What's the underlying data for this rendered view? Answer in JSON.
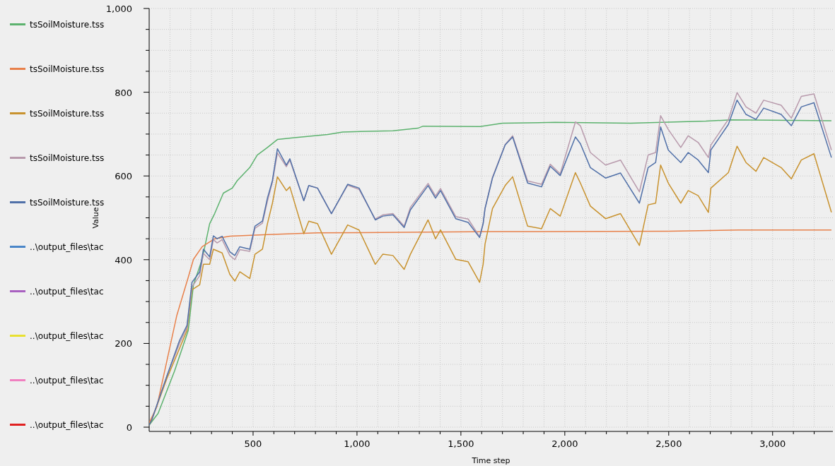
{
  "chart_data": {
    "type": "line",
    "xlabel": "Time step",
    "ylabel": "Value",
    "xlim": [
      0,
      3290
    ],
    "ylim": [
      0,
      1000
    ],
    "xticks": [
      {
        "value": 100,
        "label": null
      },
      {
        "value": 200,
        "label": null
      },
      {
        "value": 300,
        "label": null
      },
      {
        "value": 400,
        "label": null
      },
      500,
      {
        "value": 600,
        "label": null
      },
      {
        "value": 700,
        "label": null
      },
      {
        "value": 800,
        "label": null
      },
      {
        "value": 900,
        "label": null
      },
      {
        "value": 1000,
        "label": "1,000"
      },
      {
        "value": 1100,
        "label": null
      },
      {
        "value": 1200,
        "label": null
      },
      {
        "value": 1300,
        "label": null
      },
      {
        "value": 1400,
        "label": null
      },
      {
        "value": 1500,
        "label": "1,500"
      },
      {
        "value": 1600,
        "label": null
      },
      {
        "value": 1700,
        "label": null
      },
      {
        "value": 1800,
        "label": null
      },
      {
        "value": 1900,
        "label": null
      },
      {
        "value": 2000,
        "label": "2,000"
      },
      {
        "value": 2100,
        "label": null
      },
      {
        "value": 2200,
        "label": null
      },
      {
        "value": 2300,
        "label": null
      },
      {
        "value": 2400,
        "label": null
      },
      {
        "value": 2500,
        "label": "2,500"
      },
      {
        "value": 2600,
        "label": null
      },
      {
        "value": 2700,
        "label": null
      },
      {
        "value": 2800,
        "label": null
      },
      {
        "value": 2900,
        "label": null
      },
      {
        "value": 3000,
        "label": "3,000"
      },
      {
        "value": 3100,
        "label": null
      },
      {
        "value": 3200,
        "label": null
      }
    ],
    "yticks": [
      0,
      {
        "value": 50,
        "label": null
      },
      {
        "value": 100,
        "label": null
      },
      {
        "value": 150,
        "label": null
      },
      200,
      {
        "value": 250,
        "label": null
      },
      {
        "value": 300,
        "label": null
      },
      {
        "value": 350,
        "label": null
      },
      400,
      {
        "value": 450,
        "label": null
      },
      {
        "value": 500,
        "label": null
      },
      {
        "value": 550,
        "label": null
      },
      600,
      {
        "value": 650,
        "label": null
      },
      {
        "value": 700,
        "label": null
      },
      {
        "value": 750,
        "label": null
      },
      800,
      {
        "value": 850,
        "label": null
      },
      {
        "value": 900,
        "label": null
      },
      {
        "value": 950,
        "label": null
      },
      {
        "value": 1000,
        "label": "1,000"
      }
    ],
    "grid": true,
    "legend": "left",
    "marker": "none",
    "line_style": "solid",
    "series": [
      {
        "name": "tsSoilMoisture.tss",
        "color": "#5cb26e",
        "x": [
          0,
          43,
          122,
          188,
          213,
          255,
          291,
          315,
          357,
          400,
          424,
          484,
          520,
          569,
          617,
          690,
          859,
          931,
          1173,
          1293,
          1318,
          1592,
          1700,
          1954,
          2316,
          2679,
          2800,
          3283
        ],
        "values": [
          5,
          33,
          134,
          231,
          340,
          401,
          486,
          510,
          559,
          571,
          589,
          620,
          650,
          668,
          687,
          691,
          699,
          705,
          708,
          714,
          719,
          718,
          726,
          728,
          726,
          731,
          734,
          732
        ]
      },
      {
        "name": "tsSoilMoisture.tss",
        "color": "#e8804a",
        "x": [
          0,
          37,
          85,
          133,
          188,
          213,
          255,
          315,
          388,
          569,
          810,
          1656,
          2498,
          2836,
          3283
        ],
        "values": [
          10,
          49,
          158,
          267,
          358,
          401,
          431,
          450,
          456,
          460,
          464,
          467,
          468,
          471,
          471
        ]
      },
      {
        "name": "tsSoilMoisture.tss",
        "color": "#c8922e",
        "x": [
          0,
          13,
          85,
          146,
          182,
          206,
          243,
          261,
          291,
          309,
          351,
          388,
          412,
          436,
          484,
          509,
          545,
          569,
          593,
          617,
          660,
          677,
          744,
          768,
          810,
          877,
          955,
          1010,
          1088,
          1124,
          1173,
          1227,
          1257,
          1342,
          1378,
          1402,
          1475,
          1535,
          1590,
          1607,
          1616,
          1652,
          1713,
          1749,
          1821,
          1888,
          1930,
          1978,
          2051,
          2075,
          2123,
          2196,
          2268,
          2359,
          2401,
          2437,
          2461,
          2498,
          2558,
          2594,
          2642,
          2691,
          2703,
          2787,
          2829,
          2872,
          2920,
          2957,
          3041,
          3090,
          3138,
          3199,
          3283
        ],
        "values": [
          5,
          18,
          116,
          188,
          231,
          328,
          340,
          389,
          389,
          425,
          416,
          365,
          349,
          371,
          355,
          413,
          425,
          486,
          535,
          598,
          565,
          574,
          462,
          492,
          486,
          413,
          483,
          471,
          389,
          413,
          410,
          377,
          413,
          495,
          450,
          471,
          401,
          395,
          346,
          389,
          437,
          522,
          577,
          598,
          480,
          474,
          522,
          504,
          608,
          583,
          528,
          498,
          510,
          434,
          531,
          535,
          626,
          583,
          535,
          565,
          553,
          513,
          571,
          608,
          671,
          632,
          611,
          644,
          620,
          593,
          638,
          653,
          513
        ]
      },
      {
        "name": "tsSoilMoisture.tss",
        "color": "#b89aac",
        "x": [
          13,
          85,
          146,
          182,
          206,
          243,
          261,
          291,
          309,
          327,
          351,
          388,
          412,
          436,
          484,
          509,
          545,
          569,
          593,
          617,
          660,
          677,
          744,
          768,
          810,
          877,
          955,
          1010,
          1088,
          1124,
          1173,
          1227,
          1257,
          1342,
          1378,
          1402,
          1475,
          1535,
          1590,
          1607,
          1616,
          1652,
          1713,
          1749,
          1821,
          1888,
          1930,
          1978,
          2051,
          2075,
          2123,
          2196,
          2268,
          2359,
          2401,
          2437,
          2461,
          2498,
          2558,
          2594,
          2642,
          2691,
          2703,
          2787,
          2829,
          2872,
          2920,
          2957,
          3041,
          3090,
          3138,
          3199,
          3283
        ],
        "values": [
          18,
          122,
          200,
          238,
          335,
          362,
          415,
          400,
          448,
          440,
          448,
          410,
          400,
          424,
          420,
          475,
          487,
          540,
          585,
          655,
          622,
          638,
          541,
          577,
          571,
          510,
          578,
          568,
          497,
          507,
          510,
          480,
          525,
          582,
          552,
          570,
          503,
          497,
          455,
          486,
          522,
          597,
          675,
          696,
          588,
          580,
          628,
          605,
          729,
          720,
          656,
          626,
          638,
          562,
          650,
          656,
          744,
          711,
          668,
          696,
          680,
          644,
          674,
          735,
          799,
          765,
          750,
          781,
          769,
          738,
          790,
          796,
          662
        ]
      },
      {
        "name": "tsSoilMoisture.tss",
        "color": "#5070a8",
        "x": [
          0,
          13,
          85,
          146,
          182,
          206,
          243,
          261,
          291,
          309,
          327,
          351,
          388,
          412,
          436,
          484,
          509,
          545,
          569,
          593,
          617,
          660,
          677,
          744,
          768,
          810,
          877,
          955,
          1010,
          1088,
          1124,
          1173,
          1227,
          1257,
          1342,
          1378,
          1402,
          1475,
          1535,
          1590,
          1607,
          1616,
          1652,
          1713,
          1749,
          1821,
          1888,
          1930,
          1978,
          2051,
          2075,
          2123,
          2196,
          2268,
          2359,
          2401,
          2437,
          2461,
          2498,
          2558,
          2594,
          2642,
          2691,
          2703,
          2787,
          2829,
          2872,
          2920,
          2957,
          3041,
          3090,
          3138,
          3199,
          3283
        ],
        "values": [
          5,
          18,
          122,
          207,
          243,
          346,
          371,
          425,
          407,
          457,
          450,
          456,
          419,
          410,
          431,
          425,
          480,
          492,
          547,
          589,
          665,
          626,
          641,
          541,
          577,
          571,
          510,
          580,
          571,
          495,
          504,
          507,
          477,
          519,
          577,
          547,
          565,
          498,
          489,
          453,
          486,
          522,
          595,
          674,
          693,
          583,
          574,
          623,
          601,
          693,
          677,
          620,
          595,
          607,
          535,
          620,
          632,
          717,
          662,
          632,
          656,
          638,
          608,
          662,
          723,
          781,
          747,
          735,
          762,
          747,
          720,
          765,
          775,
          644
        ]
      },
      {
        "name": "..\\output_files\\tac",
        "color": "#4a86c8"
      },
      {
        "name": "..\\output_files\\tac",
        "color": "#a860c0"
      },
      {
        "name": "..\\output_files\\tac",
        "color": "#e8e030"
      },
      {
        "name": "..\\output_files\\tac",
        "color": "#f080c0"
      },
      {
        "name": "..\\output_files\\tac",
        "color": "#e02020"
      }
    ]
  }
}
